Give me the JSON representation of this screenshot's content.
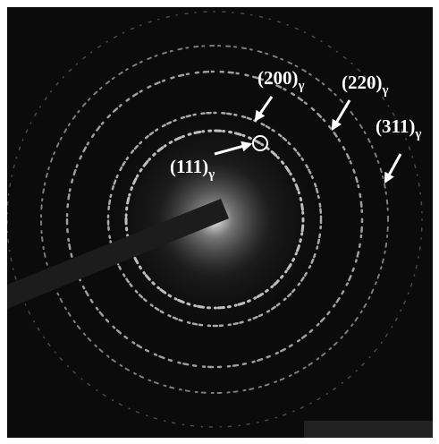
{
  "labels": [
    {
      "text": "(200)",
      "sub": "γ"
    },
    {
      "text": "(220)",
      "sub": "γ"
    },
    {
      "text": "(311)",
      "sub": "γ"
    },
    {
      "text": "(111)",
      "sub": "γ"
    }
  ]
}
